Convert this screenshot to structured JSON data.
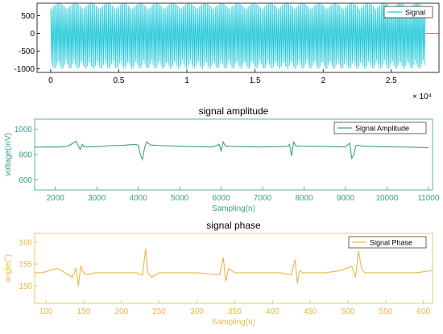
{
  "chart_data": [
    {
      "type": "line",
      "title": "",
      "xlabel": "",
      "ylabel": "",
      "xlim": [
        -1000,
        28500
      ],
      "ylim": [
        -1100,
        850
      ],
      "x_ticks": [
        0,
        5000,
        10000,
        15000,
        20000,
        25000
      ],
      "x_tick_labels": [
        "0",
        "0.5",
        "1",
        "1.5",
        "2",
        "2.5"
      ],
      "x_exponent_label": "× 10⁴",
      "y_ticks": [
        -1000,
        -500,
        0,
        500
      ],
      "y_tick_labels": [
        "-1000",
        "-500",
        "0",
        "500"
      ],
      "legend": "top-right",
      "line_color": "#22c8d8",
      "series": [
        {
          "name": "Signal",
          "x_range": [
            0,
            27500
          ],
          "amplitude_min": -1000,
          "amplitude_max": 850
        }
      ]
    },
    {
      "type": "line",
      "title": "signal amplitude",
      "xlabel": "Sampling(n)",
      "ylabel": "voltage(mV)",
      "xlim": [
        1500,
        11100
      ],
      "ylim": [
        520,
        1080
      ],
      "x_ticks": [
        2000,
        3000,
        4000,
        5000,
        6000,
        7000,
        8000,
        9000,
        10000,
        11000
      ],
      "y_ticks": [
        600,
        800,
        1000
      ],
      "legend": "top-right",
      "line_color": "#3a9e8e",
      "series": [
        {
          "name": "Signal Amplitude",
          "x": [
            1500,
            1800,
            2100,
            2300,
            2400,
            2500,
            2550,
            2600,
            2650,
            2700,
            2800,
            3000,
            3300,
            3600,
            3900,
            4000,
            4050,
            4100,
            4150,
            4200,
            4300,
            4600,
            5000,
            5400,
            5800,
            5950,
            6000,
            6050,
            6100,
            6200,
            6600,
            7000,
            7400,
            7600,
            7650,
            7700,
            7750,
            7800,
            7900,
            8300,
            8700,
            9000,
            9100,
            9150,
            9200,
            9250,
            9300,
            9400,
            9800,
            10200,
            10600,
            11000
          ],
          "y": [
            858,
            860,
            859,
            865,
            885,
            905,
            870,
            840,
            880,
            862,
            860,
            862,
            870,
            872,
            880,
            875,
            800,
            760,
            850,
            900,
            875,
            870,
            865,
            862,
            860,
            880,
            830,
            900,
            868,
            865,
            862,
            860,
            862,
            865,
            880,
            790,
            900,
            868,
            866,
            865,
            862,
            860,
            890,
            770,
            800,
            868,
            875,
            866,
            862,
            860,
            858,
            855
          ]
        }
      ]
    },
    {
      "type": "line",
      "title": "signal phase",
      "xlabel": "Sampling(n)",
      "ylabel": "angle(°)",
      "xlim": [
        85,
        612
      ],
      "ylim": [
        146,
        162
      ],
      "x_ticks": [
        100,
        150,
        200,
        250,
        300,
        350,
        400,
        450,
        500,
        550,
        600
      ],
      "y_ticks": [
        150,
        155,
        160
      ],
      "legend": "top-right",
      "line_color": "#e8b84a",
      "series": [
        {
          "name": "Signal Phase",
          "x": [
            85,
            95,
            105,
            115,
            125,
            135,
            140,
            143,
            146,
            150,
            155,
            165,
            185,
            205,
            220,
            228,
            232,
            235,
            240,
            250,
            270,
            290,
            300,
            330,
            335,
            338,
            342,
            350,
            370,
            390,
            410,
            425,
            430,
            433,
            436,
            440,
            450,
            470,
            490,
            505,
            510,
            514,
            518,
            522,
            530,
            550,
            570,
            590,
            612
          ],
          "y": [
            153,
            153,
            153.5,
            154,
            153,
            152,
            154,
            150,
            154.5,
            153,
            152.5,
            153,
            153,
            153,
            153,
            152.5,
            158.5,
            153,
            152,
            153,
            153,
            153,
            153,
            152.5,
            156.5,
            151,
            154,
            153,
            153,
            153,
            153,
            152.5,
            156,
            150.5,
            153.5,
            153,
            153,
            153,
            153.5,
            154.5,
            152,
            158,
            154,
            153,
            153,
            153,
            153,
            153,
            153.5
          ]
        }
      ]
    }
  ]
}
